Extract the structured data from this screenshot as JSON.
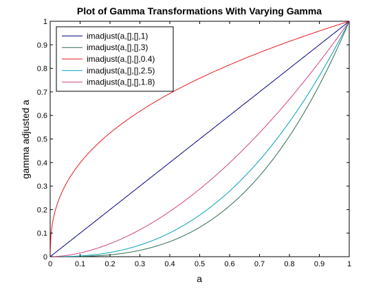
{
  "chart_data": {
    "type": "line",
    "title": "Plot of Gamma Transformations With Varying Gamma",
    "xlabel": "a",
    "ylabel": "gamma adjusted a",
    "xlim": [
      0,
      1
    ],
    "ylim": [
      0,
      1
    ],
    "xticks": [
      0,
      0.1,
      0.2,
      0.3,
      0.4,
      0.5,
      0.6,
      0.7,
      0.8,
      0.9,
      1
    ],
    "yticks": [
      0,
      0.1,
      0.2,
      0.3,
      0.4,
      0.5,
      0.6,
      0.7,
      0.8,
      0.9,
      1
    ],
    "xtick_labels": [
      "0",
      "0.1",
      "0.2",
      "0.3",
      "0.4",
      "0.5",
      "0.6",
      "0.7",
      "0.8",
      "0.9",
      "1"
    ],
    "ytick_labels": [
      "0",
      "0.1",
      "0.2",
      "0.3",
      "0.4",
      "0.5",
      "0.6",
      "0.7",
      "0.8",
      "0.9",
      "1"
    ],
    "grid": false,
    "legend_position": "top-left",
    "series": [
      {
        "name": "imadjust(a,[],[],1)",
        "gamma": 1,
        "color": "#00007f"
      },
      {
        "name": "imadjust(a,[],[],3)",
        "gamma": 3,
        "color": "#2f6a4f"
      },
      {
        "name": "imadjust(a,[],[],0.4)",
        "gamma": 0.4,
        "color": "#e8181c"
      },
      {
        "name": "imadjust(a,[],[],2.5)",
        "gamma": 2.5,
        "color": "#00a0b8"
      },
      {
        "name": "imadjust(a,[],[],1.8)",
        "gamma": 1.8,
        "color": "#d0407f"
      }
    ]
  }
}
